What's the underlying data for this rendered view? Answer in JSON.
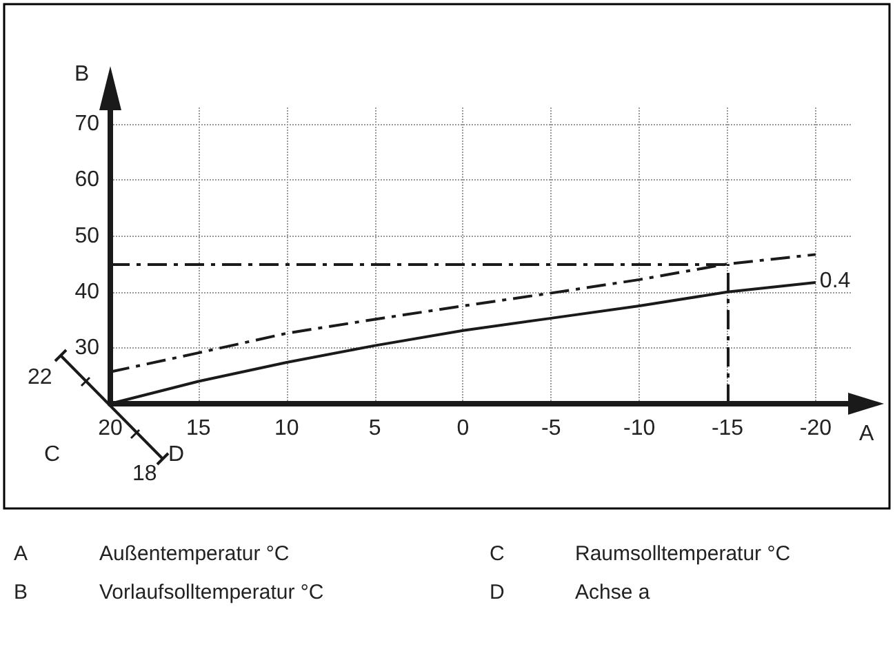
{
  "chart_data": {
    "type": "line",
    "xlabel": "A",
    "ylabel": "B",
    "x": [
      20,
      15,
      10,
      5,
      0,
      -5,
      -10,
      -15,
      -20
    ],
    "series": [
      {
        "color": "#1a1a1a",
        "line_style": "solid",
        "values": [
          20,
          24,
          27.4,
          30.4,
          33.1,
          35.3,
          37.5,
          40,
          41.7
        ]
      },
      {
        "color": "#1a1a1a",
        "line_style": "dashed",
        "values": [
          25.7,
          29.1,
          32.6,
          35.1,
          37.5,
          39.8,
          42.2,
          45,
          46.7
        ]
      }
    ],
    "xlim": [
      20,
      -22
    ],
    "xticks": [
      20,
      15,
      10,
      5,
      0,
      -5,
      -10,
      -15,
      -20
    ],
    "ylim": [
      20,
      73
    ],
    "yticks": [
      30,
      40,
      50,
      60,
      70
    ],
    "grid": true,
    "marker": "none",
    "ref_lines": [
      {
        "axis": "y",
        "value": 45,
        "line_style": "dashed",
        "color": "#1a1a1a"
      },
      {
        "axis": "x",
        "value": -15,
        "line_style": "dashed",
        "color": "#1a1a1a"
      }
    ],
    "annotations": [
      {
        "text": "0.4",
        "x": -20,
        "y": 41.7
      },
      "22",
      "18",
      "C",
      "D",
      "A",
      "Außentemperatur °C",
      "C",
      "Raumsolltemperatur °C",
      "B",
      "Vorlaufsolltemperatur °C",
      "D",
      "Achse a"
    ]
  }
}
